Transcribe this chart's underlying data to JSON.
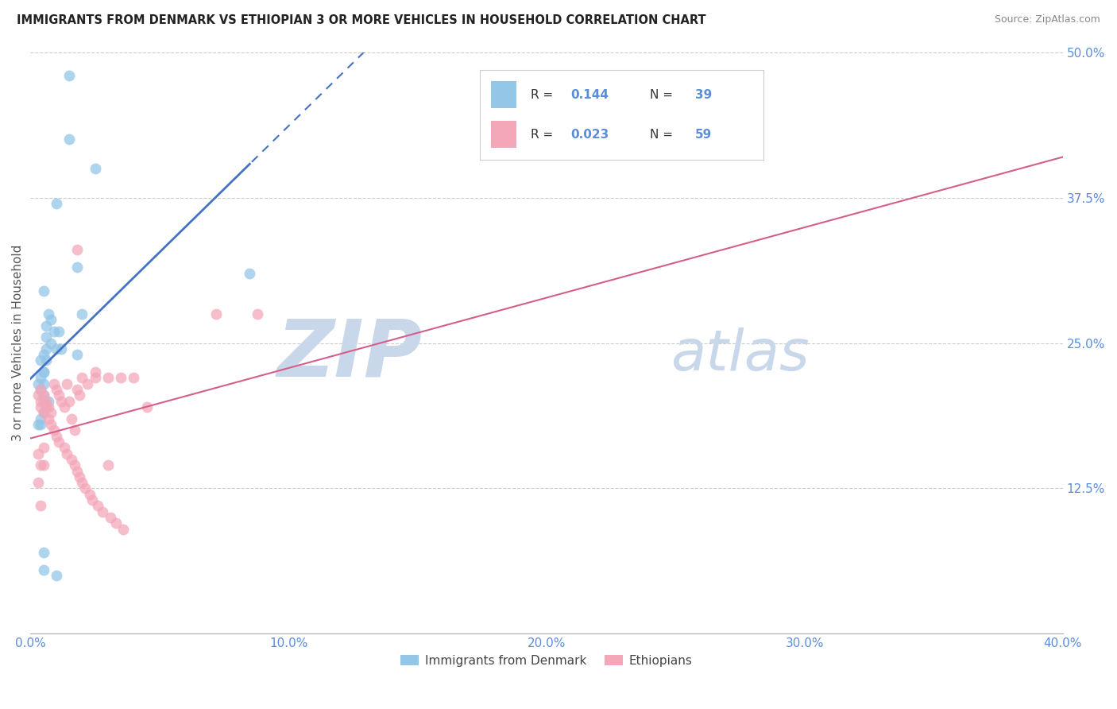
{
  "title": "IMMIGRANTS FROM DENMARK VS ETHIOPIAN 3 OR MORE VEHICLES IN HOUSEHOLD CORRELATION CHART",
  "source": "Source: ZipAtlas.com",
  "ylabel": "3 or more Vehicles in Household",
  "legend_label1": "Immigrants from Denmark",
  "legend_label2": "Ethiopians",
  "R1": 0.144,
  "N1": 39,
  "R2": 0.023,
  "N2": 59,
  "color_blue": "#94c6e7",
  "color_pink": "#f4a7b9",
  "color_line_blue": "#4472c4",
  "color_line_pink": "#d45f8a",
  "color_watermark": "#c8d8ea",
  "blue_x": [
    1.5,
    1.5,
    2.5,
    1.0,
    1.8,
    0.5,
    0.7,
    2.0,
    0.8,
    0.6,
    1.1,
    0.9,
    0.6,
    0.8,
    1.0,
    0.5,
    0.6,
    0.5,
    0.4,
    0.3,
    0.4,
    0.5,
    0.7,
    0.6,
    0.5,
    0.4,
    0.3,
    1.2,
    1.8,
    8.5,
    0.4,
    0.5,
    0.5,
    1.0,
    0.6,
    0.4,
    0.5,
    0.5,
    0.5
  ],
  "blue_y": [
    48.0,
    42.5,
    40.0,
    37.0,
    31.5,
    29.5,
    27.5,
    27.5,
    27.0,
    26.5,
    26.0,
    26.0,
    25.5,
    25.0,
    24.5,
    24.0,
    23.5,
    22.5,
    22.0,
    21.5,
    21.0,
    20.5,
    20.0,
    19.5,
    19.0,
    18.5,
    18.0,
    24.5,
    24.0,
    31.0,
    18.0,
    7.0,
    5.5,
    5.0,
    24.5,
    23.5,
    22.5,
    21.5,
    20.0
  ],
  "pink_x": [
    0.3,
    0.4,
    0.6,
    0.5,
    0.7,
    0.8,
    0.9,
    1.0,
    1.1,
    1.3,
    1.4,
    1.6,
    1.7,
    1.8,
    1.9,
    2.0,
    2.1,
    2.3,
    2.4,
    2.6,
    2.8,
    3.1,
    3.3,
    3.6,
    1.8,
    2.5,
    3.0,
    3.5,
    4.0,
    4.5,
    0.4,
    0.5,
    0.6,
    0.7,
    0.8,
    0.9,
    1.0,
    1.1,
    1.2,
    1.3,
    1.4,
    1.5,
    1.6,
    1.7,
    1.8,
    1.9,
    2.0,
    2.2,
    2.5,
    3.0,
    7.2,
    8.8,
    0.4,
    0.5,
    0.3,
    0.4,
    0.3,
    0.4,
    0.5
  ],
  "pink_y": [
    20.5,
    20.0,
    19.5,
    19.0,
    18.5,
    18.0,
    17.5,
    17.0,
    16.5,
    16.0,
    15.5,
    15.0,
    14.5,
    14.0,
    13.5,
    13.0,
    12.5,
    12.0,
    11.5,
    11.0,
    10.5,
    10.0,
    9.5,
    9.0,
    33.0,
    22.5,
    14.5,
    22.0,
    22.0,
    19.5,
    21.0,
    20.5,
    20.0,
    19.5,
    19.0,
    21.5,
    21.0,
    20.5,
    20.0,
    19.5,
    21.5,
    20.0,
    18.5,
    17.5,
    21.0,
    20.5,
    22.0,
    21.5,
    22.0,
    22.0,
    27.5,
    27.5,
    19.5,
    16.0,
    15.5,
    14.5,
    13.0,
    11.0,
    14.5
  ],
  "xlim": [
    0,
    40
  ],
  "ylim": [
    0,
    50
  ],
  "xticks": [
    0,
    10,
    20,
    30,
    40
  ],
  "yticks": [
    0,
    12.5,
    25.0,
    37.5,
    50.0
  ],
  "figsize": [
    14.06,
    8.92
  ],
  "dpi": 100,
  "solid_end_x": 8.5
}
